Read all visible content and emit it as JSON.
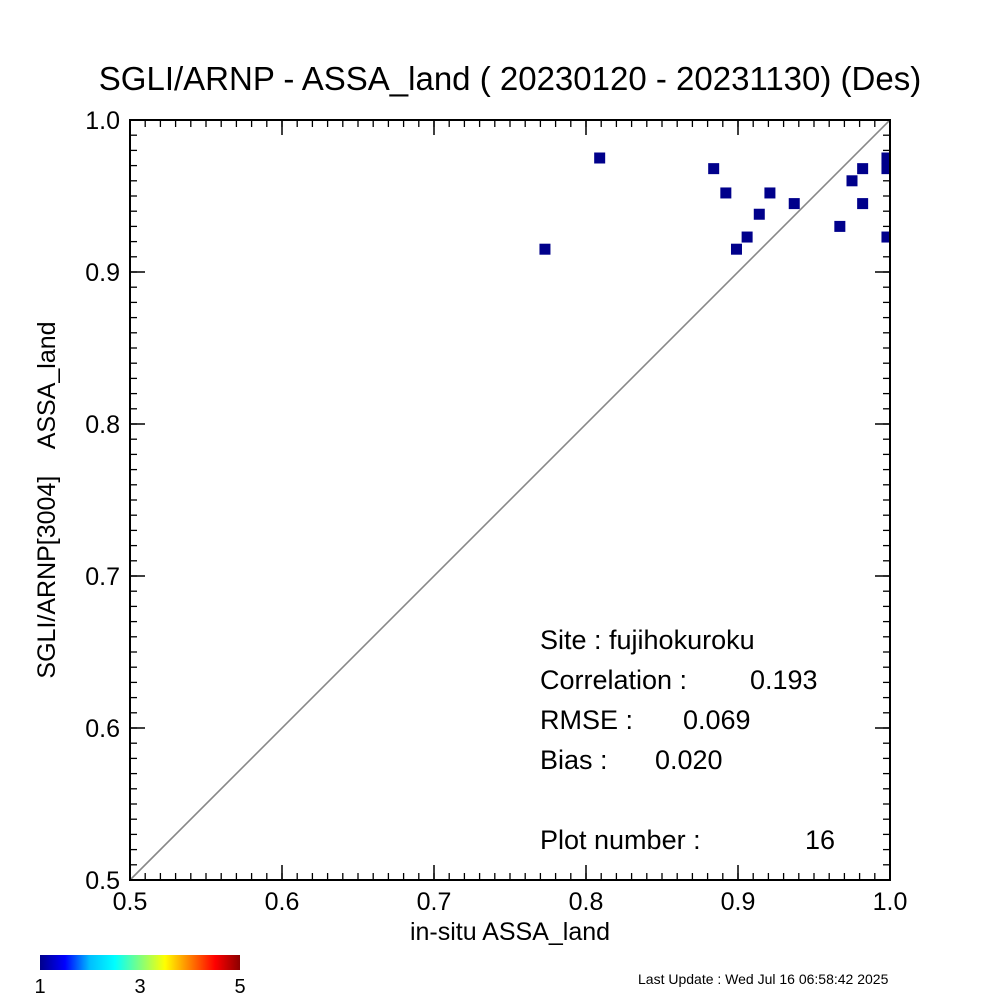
{
  "chart_data": {
    "type": "scatter",
    "title": "SGLI/ARNP - ASSA_land ( 20230120 - 20231130) (Des)",
    "xlabel": "in-situ ASSA_land",
    "ylabel": "SGLI/ARNP[3004]    ASSA_land",
    "xlim": [
      0.5,
      1.0
    ],
    "ylim": [
      0.5,
      1.0
    ],
    "x_ticks": [
      "0.5",
      "0.6",
      "0.7",
      "0.8",
      "0.9",
      "1.0"
    ],
    "y_ticks": [
      "0.5",
      "0.6",
      "0.7",
      "0.8",
      "0.9",
      "1.0"
    ],
    "reference_line": "1:1",
    "point_color": "#00008b",
    "points": [
      {
        "x": 0.773,
        "y": 0.915
      },
      {
        "x": 0.809,
        "y": 0.975
      },
      {
        "x": 0.884,
        "y": 0.968
      },
      {
        "x": 0.892,
        "y": 0.952
      },
      {
        "x": 0.899,
        "y": 0.915
      },
      {
        "x": 0.906,
        "y": 0.923
      },
      {
        "x": 0.914,
        "y": 0.938
      },
      {
        "x": 0.921,
        "y": 0.952
      },
      {
        "x": 0.937,
        "y": 0.945
      },
      {
        "x": 0.967,
        "y": 0.93
      },
      {
        "x": 0.975,
        "y": 0.96
      },
      {
        "x": 0.982,
        "y": 0.968
      },
      {
        "x": 0.982,
        "y": 0.945
      },
      {
        "x": 0.998,
        "y": 0.975
      },
      {
        "x": 0.998,
        "y": 0.968
      },
      {
        "x": 0.998,
        "y": 0.923
      }
    ],
    "annotations": {
      "site": "Site : fujihokuroku",
      "correlation_label": "Correlation :",
      "correlation_value": "0.193",
      "rmse_label": "RMSE :",
      "rmse_value": "0.069",
      "bias_label": "Bias :",
      "bias_value": "0.020",
      "plot_number_label": "Plot number :",
      "plot_number_value": "16"
    },
    "colorbar": {
      "labels": [
        "1",
        "3",
        "5"
      ],
      "colors": [
        "#00008b",
        "#0000ff",
        "#00bfff",
        "#00ffff",
        "#7fff7f",
        "#ffff00",
        "#ff7f00",
        "#ff0000",
        "#8b0000"
      ]
    }
  },
  "footer": {
    "last_update": "Last Update : Wed Jul 16 06:58:42 2025"
  }
}
